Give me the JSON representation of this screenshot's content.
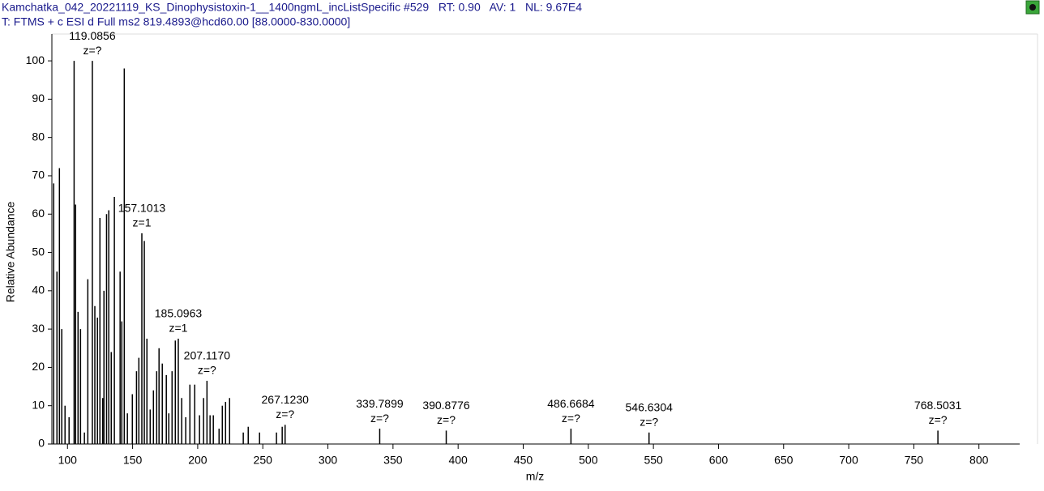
{
  "chart_data": {
    "type": "spectrum",
    "title": "Kamchatka_042_20221119_KS_Dinophysistoxin-1__1400ngmL_incListSpecific #529   RT: 0.90   AV: 1   NL: 9.67E4",
    "subtitle": "T: FTMS + c ESI d Full ms2 819.4893@hcd60.00 [88.0000-830.0000]",
    "x_label": "m/z",
    "y_label": "Relative Abundance",
    "color": "#000000",
    "x": [
      89.4,
      91.9,
      93.8,
      95.6,
      98.1,
      101.2,
      105.07,
      106.2,
      108.1,
      110,
      113,
      115.6,
      119.0856,
      121,
      123,
      124.9,
      127,
      128,
      130,
      131.7,
      133.6,
      136,
      140.4,
      141.7,
      143.6,
      146,
      149.8,
      153,
      154.8,
      157.1013,
      159,
      161,
      163.5,
      166,
      168.5,
      170.3,
      172.8,
      175.9,
      177.8,
      180.3,
      182.8,
      185.0963,
      187.7,
      190.8,
      194,
      197.7,
      201.4,
      204.5,
      207.117,
      209.5,
      212,
      216.4,
      218.9,
      221.4,
      224.5,
      235,
      238.8,
      247.5,
      260.5,
      264.9,
      267.123,
      339.7899,
      390.8776,
      486.6684,
      546.6304,
      768.5031
    ],
    "values": [
      68,
      45,
      72,
      30,
      10,
      7,
      100,
      62.5,
      34.5,
      30,
      3,
      43,
      100,
      36,
      33,
      59,
      12,
      40,
      60,
      61,
      24,
      64.5,
      45,
      32,
      98,
      8,
      13,
      19,
      22.5,
      55,
      53,
      27.5,
      9,
      14,
      19,
      25,
      21,
      18,
      8,
      19,
      27,
      27.5,
      12,
      7,
      15.5,
      15.5,
      7.5,
      12,
      16.5,
      7.5,
      7.5,
      4,
      10,
      11,
      12,
      3,
      4.5,
      3,
      3,
      4.5,
      5,
      4,
      3.5,
      4,
      3,
      3.5
    ],
    "annotations": [
      {
        "x": 119.0856,
        "label": "119.0856",
        "charge": "z=?"
      },
      {
        "x": 157.1013,
        "label": "157.1013",
        "charge": "z=1"
      },
      {
        "x": 185.0963,
        "label": "185.0963",
        "charge": "z=1"
      },
      {
        "x": 207.117,
        "label": "207.1170",
        "charge": "z=?"
      },
      {
        "x": 267.123,
        "label": "267.1230",
        "charge": "z=?"
      },
      {
        "x": 339.7899,
        "label": "339.7899",
        "charge": "z=?"
      },
      {
        "x": 390.8776,
        "label": "390.8776",
        "charge": "z=?"
      },
      {
        "x": 486.6684,
        "label": "486.6684",
        "charge": "z=?"
      },
      {
        "x": 546.6304,
        "label": "546.6304",
        "charge": "z=?"
      },
      {
        "x": 768.5031,
        "label": "768.5031",
        "charge": "z=?"
      }
    ],
    "xlim": [
      88,
      845
    ],
    "ylim": [
      0,
      107
    ],
    "xticks": [
      100,
      150,
      200,
      250,
      300,
      350,
      400,
      450,
      500,
      550,
      600,
      650,
      700,
      750,
      800
    ],
    "yticks": [
      0,
      10,
      20,
      30,
      40,
      50,
      60,
      70,
      80,
      90,
      100
    ]
  }
}
